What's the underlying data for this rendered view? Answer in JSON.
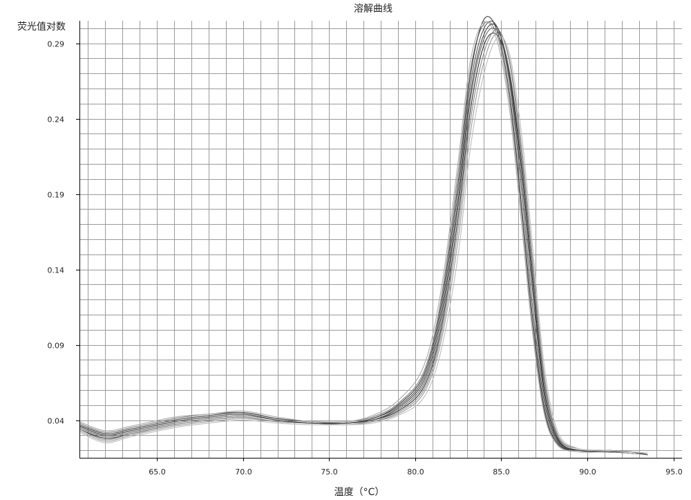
{
  "chart_data": {
    "type": "line",
    "title": "溶解曲线",
    "ylabel": "荧光值对数",
    "xlabel": "温度（°C）",
    "xlim": [
      60.5,
      95.5
    ],
    "ylim": [
      0.015,
      0.305
    ],
    "grid": true,
    "x_ticks": [
      65.0,
      70.0,
      75.0,
      80.0,
      85.0,
      90.0,
      95.0
    ],
    "x_tick_labels": [
      "65.0",
      "70.0",
      "75.0",
      "80.0",
      "85.0",
      "90.0",
      "95.0"
    ],
    "y_ticks": [
      0.04,
      0.09,
      0.14,
      0.19,
      0.24,
      0.29
    ],
    "y_tick_labels": [
      "0.04",
      "0.09",
      "0.14",
      "0.19",
      "0.24",
      "0.29"
    ],
    "line_colors": [
      "#2b2b2b",
      "#555555",
      "#7a7a7a",
      "#999999",
      "#3d3d3d",
      "#666666",
      "#888888",
      "#aaaaaa",
      "#444444",
      "#bbbbbb"
    ],
    "series": [
      {
        "x": [
          60.5,
          62.0,
          63.5,
          66.0,
          68.0,
          70.0,
          72.0,
          74.0,
          76.0,
          77.5,
          79.0,
          80.5,
          81.5,
          82.5,
          83.2,
          84.0,
          84.8,
          85.5,
          86.2,
          86.8,
          87.5,
          88.3,
          89.5,
          91.0,
          92.5,
          93.5
        ],
        "y": [
          0.034,
          0.028,
          0.031,
          0.037,
          0.04,
          0.042,
          0.039,
          0.038,
          0.038,
          0.04,
          0.046,
          0.062,
          0.1,
          0.175,
          0.245,
          0.289,
          0.295,
          0.268,
          0.205,
          0.135,
          0.06,
          0.027,
          0.02,
          0.02,
          0.019,
          0.017
        ]
      },
      {
        "x": [
          60.5,
          62.0,
          63.5,
          66.0,
          68.0,
          70.0,
          72.0,
          74.0,
          76.0,
          77.5,
          79.0,
          80.5,
          81.5,
          82.5,
          83.2,
          84.0,
          84.8,
          85.5,
          86.2,
          86.8,
          87.5,
          88.3,
          89.5,
          91.0,
          92.5,
          93.5
        ],
        "y": [
          0.036,
          0.03,
          0.033,
          0.039,
          0.042,
          0.044,
          0.04,
          0.038,
          0.038,
          0.041,
          0.049,
          0.068,
          0.112,
          0.192,
          0.262,
          0.3,
          0.3,
          0.262,
          0.19,
          0.118,
          0.052,
          0.025,
          0.02,
          0.019,
          0.019,
          0.017
        ]
      },
      {
        "x": [
          60.5,
          62.0,
          63.5,
          66.0,
          68.0,
          70.0,
          72.0,
          74.0,
          76.0,
          77.5,
          79.0,
          80.5,
          81.5,
          82.5,
          83.2,
          84.0,
          84.8,
          85.5,
          86.2,
          86.8,
          87.5,
          88.3,
          89.5,
          91.0,
          92.5,
          93.5
        ],
        "y": [
          0.038,
          0.032,
          0.035,
          0.041,
          0.044,
          0.045,
          0.041,
          0.039,
          0.039,
          0.042,
          0.051,
          0.072,
          0.12,
          0.205,
          0.272,
          0.303,
          0.294,
          0.25,
          0.175,
          0.105,
          0.046,
          0.024,
          0.019,
          0.019,
          0.018,
          0.017
        ]
      },
      {
        "x": [
          60.5,
          62.0,
          63.5,
          66.0,
          68.0,
          70.0,
          72.0,
          74.0,
          76.0,
          77.5,
          79.0,
          80.5,
          81.5,
          82.5,
          83.2,
          84.0,
          84.8,
          85.5,
          86.2,
          86.8,
          87.5,
          88.3,
          89.5,
          91.0,
          92.5,
          93.5
        ],
        "y": [
          0.033,
          0.026,
          0.03,
          0.036,
          0.039,
          0.041,
          0.039,
          0.038,
          0.037,
          0.039,
          0.044,
          0.058,
          0.092,
          0.16,
          0.23,
          0.278,
          0.297,
          0.278,
          0.22,
          0.15,
          0.07,
          0.03,
          0.021,
          0.02,
          0.019,
          0.018
        ]
      },
      {
        "x": [
          60.5,
          62.0,
          63.5,
          66.0,
          68.0,
          70.0,
          72.0,
          74.0,
          76.0,
          77.5,
          79.0,
          80.5,
          81.5,
          82.5,
          83.2,
          84.0,
          84.8,
          85.5,
          86.2,
          86.8,
          87.5,
          88.3,
          89.5,
          91.0,
          92.5,
          93.5
        ],
        "y": [
          0.037,
          0.031,
          0.034,
          0.04,
          0.043,
          0.045,
          0.041,
          0.039,
          0.038,
          0.041,
          0.05,
          0.07,
          0.116,
          0.198,
          0.268,
          0.306,
          0.297,
          0.255,
          0.18,
          0.11,
          0.048,
          0.024,
          0.02,
          0.019,
          0.018,
          0.017
        ]
      },
      {
        "x": [
          60.5,
          62.0,
          63.5,
          66.0,
          68.0,
          70.0,
          72.0,
          74.0,
          76.0,
          77.5,
          79.0,
          80.5,
          81.5,
          82.5,
          83.2,
          84.0,
          84.8,
          85.5,
          86.2,
          86.8,
          87.5,
          88.3,
          89.5,
          91.0,
          92.5,
          93.5
        ],
        "y": [
          0.035,
          0.029,
          0.032,
          0.038,
          0.041,
          0.043,
          0.04,
          0.038,
          0.038,
          0.04,
          0.047,
          0.064,
          0.104,
          0.182,
          0.252,
          0.293,
          0.298,
          0.27,
          0.21,
          0.14,
          0.064,
          0.028,
          0.02,
          0.02,
          0.019,
          0.017
        ]
      },
      {
        "x": [
          60.5,
          62.0,
          63.5,
          66.0,
          68.0,
          70.0,
          72.0,
          74.0,
          76.0,
          77.5,
          79.0,
          80.5,
          81.5,
          82.5,
          83.2,
          84.0,
          84.8,
          85.5,
          86.2,
          86.8,
          87.5,
          88.3,
          89.5,
          91.0,
          92.5,
          93.5
        ],
        "y": [
          0.034,
          0.027,
          0.031,
          0.037,
          0.04,
          0.042,
          0.039,
          0.038,
          0.037,
          0.039,
          0.045,
          0.06,
          0.096,
          0.168,
          0.238,
          0.284,
          0.299,
          0.276,
          0.215,
          0.145,
          0.068,
          0.029,
          0.021,
          0.02,
          0.019,
          0.018
        ]
      },
      {
        "x": [
          60.5,
          62.0,
          63.5,
          66.0,
          68.0,
          70.0,
          72.0,
          74.0,
          76.0,
          77.5,
          79.0,
          80.5,
          81.5,
          82.5,
          83.2,
          84.0,
          84.8,
          85.5,
          86.2,
          86.8,
          87.5,
          88.3,
          89.5,
          91.0,
          92.5,
          93.5
        ],
        "y": [
          0.039,
          0.033,
          0.036,
          0.042,
          0.044,
          0.046,
          0.042,
          0.039,
          0.039,
          0.043,
          0.053,
          0.076,
          0.126,
          0.212,
          0.278,
          0.304,
          0.29,
          0.244,
          0.168,
          0.1,
          0.044,
          0.023,
          0.019,
          0.019,
          0.018,
          0.017
        ]
      },
      {
        "x": [
          60.5,
          62.0,
          63.5,
          66.0,
          68.0,
          70.0,
          72.0,
          74.0,
          76.0,
          77.5,
          79.0,
          80.5,
          81.5,
          82.5,
          83.2,
          84.0,
          84.8,
          85.5,
          86.2,
          86.8,
          87.5,
          88.3,
          89.5,
          91.0,
          92.5,
          93.5
        ],
        "y": [
          0.036,
          0.03,
          0.033,
          0.039,
          0.042,
          0.044,
          0.04,
          0.038,
          0.038,
          0.04,
          0.048,
          0.066,
          0.108,
          0.186,
          0.256,
          0.296,
          0.3,
          0.266,
          0.198,
          0.128,
          0.056,
          0.026,
          0.02,
          0.019,
          0.019,
          0.017
        ]
      },
      {
        "x": [
          60.5,
          62.0,
          63.5,
          66.0,
          68.0,
          70.0,
          72.0,
          74.0,
          76.0,
          77.5,
          79.0,
          80.5,
          81.5,
          82.5,
          83.2,
          84.0,
          84.8,
          85.5,
          86.2,
          86.8,
          87.5,
          88.3,
          89.5,
          91.0,
          92.5,
          93.5
        ],
        "y": [
          0.032,
          0.025,
          0.029,
          0.035,
          0.038,
          0.04,
          0.038,
          0.037,
          0.037,
          0.038,
          0.043,
          0.055,
          0.086,
          0.15,
          0.22,
          0.27,
          0.294,
          0.282,
          0.228,
          0.158,
          0.076,
          0.032,
          0.021,
          0.02,
          0.019,
          0.018
        ]
      }
    ]
  }
}
